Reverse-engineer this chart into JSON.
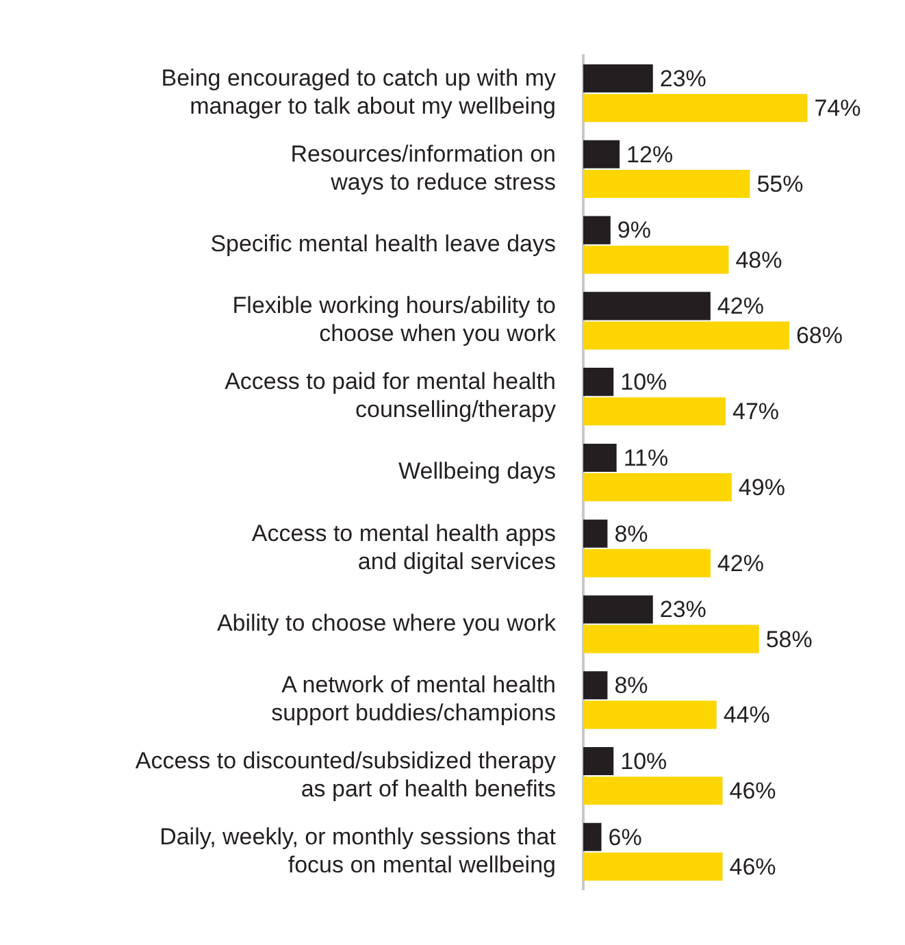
{
  "chart_data": {
    "type": "bar",
    "orientation": "horizontal",
    "categories": [
      "Being encouraged to catch up with my\nmanager to talk about my wellbeing",
      "Resources/information on\nways to reduce stress",
      "Specific mental health leave days",
      "Flexible working hours/ability to\nchoose when you work",
      "Access to paid for mental health\ncounselling/therapy",
      "Wellbeing days",
      "Access to mental health apps\nand digital services",
      "Ability to choose where you work",
      "A network of mental health\nsupport buddies/champions",
      "Access to discounted/subsidized therapy\nas part of health benefits",
      "Daily, weekly, or monthly sessions that\nfocus on mental wellbeing"
    ],
    "series": [
      {
        "color": "#231f20",
        "values": [
          23,
          12,
          9,
          42,
          10,
          11,
          8,
          23,
          8,
          10,
          6
        ],
        "value_labels": [
          "23%",
          "12%",
          "9%",
          "42%",
          "10%",
          "11%",
          "8%",
          "23%",
          "8%",
          "10%",
          "6%"
        ]
      },
      {
        "color": "#fdd500",
        "values": [
          74,
          55,
          48,
          68,
          47,
          49,
          42,
          58,
          44,
          46,
          46
        ],
        "value_labels": [
          "74%",
          "55%",
          "48%",
          "68%",
          "47%",
          "49%",
          "42%",
          "58%",
          "44%",
          "46%",
          "46%"
        ]
      }
    ]
  }
}
